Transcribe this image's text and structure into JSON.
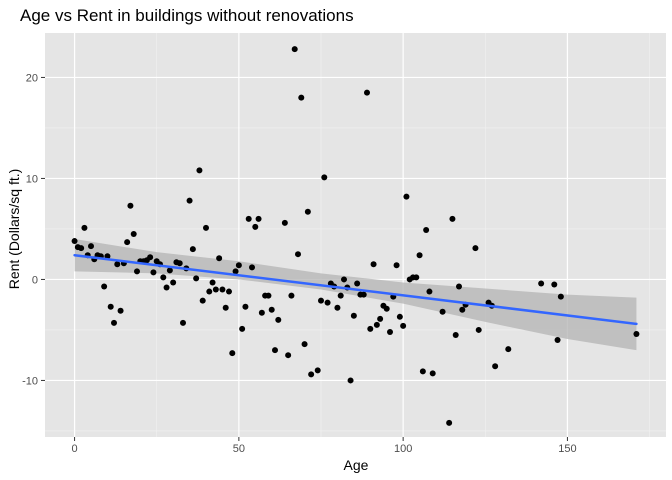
{
  "chart_data": {
    "type": "scatter",
    "title": "Age vs Rent in buildings without renovations",
    "xlabel": "Age",
    "ylabel": "Rent (Dollars/sq ft.)",
    "xlim": [
      -9,
      180
    ],
    "ylim": [
      -15.6,
      24.4
    ],
    "xticks": [
      0,
      50,
      100,
      150
    ],
    "yticks": [
      -10,
      0,
      10,
      20
    ],
    "grid": true,
    "colors": {
      "panel": "#e5e5e5",
      "grid_major": "#ffffff",
      "grid_minor": "#f2f2f2",
      "points": "#000000",
      "fit_line": "#3366ff",
      "confidence_band": "#b3b3b3"
    },
    "points": [
      [
        0,
        3.8
      ],
      [
        1,
        3.2
      ],
      [
        2,
        3.1
      ],
      [
        3,
        5.1
      ],
      [
        4,
        2.4
      ],
      [
        5,
        3.3
      ],
      [
        6,
        2.0
      ],
      [
        7,
        2.4
      ],
      [
        8,
        2.3
      ],
      [
        9,
        -0.7
      ],
      [
        10,
        2.3
      ],
      [
        11,
        -2.7
      ],
      [
        12,
        -4.3
      ],
      [
        13,
        1.5
      ],
      [
        14,
        -3.1
      ],
      [
        15,
        1.6
      ],
      [
        16,
        3.7
      ],
      [
        17,
        7.3
      ],
      [
        18,
        4.5
      ],
      [
        19,
        0.8
      ],
      [
        20,
        1.8
      ],
      [
        21,
        1.8
      ],
      [
        22,
        1.9
      ],
      [
        23,
        2.2
      ],
      [
        24,
        0.7
      ],
      [
        25,
        1.8
      ],
      [
        26,
        1.5
      ],
      [
        27,
        0.2
      ],
      [
        28,
        -0.8
      ],
      [
        29,
        0.9
      ],
      [
        30,
        -0.3
      ],
      [
        31,
        1.7
      ],
      [
        32,
        1.6
      ],
      [
        33,
        -4.3
      ],
      [
        34,
        1.1
      ],
      [
        35,
        7.8
      ],
      [
        36,
        3.0
      ],
      [
        37,
        0.1
      ],
      [
        38,
        10.8
      ],
      [
        39,
        -2.1
      ],
      [
        40,
        5.1
      ],
      [
        41,
        -1.2
      ],
      [
        42,
        -0.3
      ],
      [
        43,
        -1.0
      ],
      [
        44,
        2.1
      ],
      [
        45,
        -1.0
      ],
      [
        46,
        -2.8
      ],
      [
        47,
        -1.2
      ],
      [
        48,
        -7.3
      ],
      [
        49,
        0.8
      ],
      [
        50,
        1.4
      ],
      [
        51,
        -4.9
      ],
      [
        52,
        -2.7
      ],
      [
        53,
        6.0
      ],
      [
        54,
        1.2
      ],
      [
        55,
        5.2
      ],
      [
        56,
        6.0
      ],
      [
        57,
        -3.3
      ],
      [
        58,
        -1.6
      ],
      [
        59,
        -1.6
      ],
      [
        60,
        -3.0
      ],
      [
        61,
        -7.0
      ],
      [
        62,
        -4.0
      ],
      [
        64,
        5.6
      ],
      [
        65,
        -7.5
      ],
      [
        66,
        -1.6
      ],
      [
        67,
        22.8
      ],
      [
        68,
        2.5
      ],
      [
        69,
        18.0
      ],
      [
        70,
        -6.4
      ],
      [
        71,
        6.7
      ],
      [
        72,
        -9.4
      ],
      [
        74,
        -9.0
      ],
      [
        75,
        -2.1
      ],
      [
        76,
        10.1
      ],
      [
        77,
        -2.3
      ],
      [
        78,
        -0.4
      ],
      [
        79,
        -0.7
      ],
      [
        80,
        -2.8
      ],
      [
        81,
        -1.6
      ],
      [
        82,
        0.0
      ],
      [
        83,
        -0.8
      ],
      [
        84,
        -10.0
      ],
      [
        85,
        -3.6
      ],
      [
        86,
        -0.4
      ],
      [
        87,
        -1.5
      ],
      [
        88,
        -1.5
      ],
      [
        89,
        18.5
      ],
      [
        90,
        -4.9
      ],
      [
        91,
        1.5
      ],
      [
        92,
        -4.5
      ],
      [
        93,
        -3.9
      ],
      [
        94,
        -2.6
      ],
      [
        95,
        -2.9
      ],
      [
        96,
        -5.2
      ],
      [
        97,
        -1.7
      ],
      [
        98,
        1.4
      ],
      [
        99,
        -3.7
      ],
      [
        100,
        -4.6
      ],
      [
        101,
        8.2
      ],
      [
        102,
        0.0
      ],
      [
        103,
        0.2
      ],
      [
        104,
        0.2
      ],
      [
        105,
        2.4
      ],
      [
        106,
        -9.1
      ],
      [
        107,
        4.9
      ],
      [
        108,
        -1.2
      ],
      [
        109,
        -9.3
      ],
      [
        112,
        -3.2
      ],
      [
        114,
        -14.2
      ],
      [
        115,
        6.0
      ],
      [
        116,
        -5.5
      ],
      [
        117,
        -0.7
      ],
      [
        118,
        -3.0
      ],
      [
        119,
        -2.5
      ],
      [
        122,
        3.1
      ],
      [
        123,
        -5.0
      ],
      [
        126,
        -2.3
      ],
      [
        127,
        -2.6
      ],
      [
        128,
        -8.6
      ],
      [
        132,
        -6.9
      ],
      [
        142,
        -0.4
      ],
      [
        146,
        -0.5
      ],
      [
        147,
        -6.0
      ],
      [
        148,
        -1.7
      ],
      [
        171,
        -5.4
      ]
    ],
    "fit": {
      "method": "lm",
      "x_start": 0,
      "x_end": 171,
      "y_start": 2.4,
      "y_end": -4.4,
      "band": [
        [
          0,
          0.8,
          4.0
        ],
        [
          25,
          0.6,
          2.7
        ],
        [
          50,
          0.0,
          1.8
        ],
        [
          75,
          -1.0,
          0.6
        ],
        [
          100,
          -2.4,
          -0.3
        ],
        [
          125,
          -4.2,
          -0.9
        ],
        [
          150,
          -5.9,
          -1.5
        ],
        [
          171,
          -7.0,
          -1.8
        ]
      ]
    }
  }
}
